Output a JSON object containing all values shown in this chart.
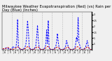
{
  "title": "Milwaukee Weather Evapotranspiration (Red) (vs) Rain per Day (Blue) (Inches)",
  "ylim": [
    0,
    3.2
  ],
  "ytick_vals": [
    0.5,
    1.0,
    1.5,
    2.0,
    2.5,
    3.0
  ],
  "ytick_labels": [
    ".5",
    "1.",
    "1.5",
    "2.",
    "2.5",
    "3."
  ],
  "background_color": "#f0f0f0",
  "rain_color": "#0000ff",
  "et_color": "#cc0000",
  "black_color": "#000000",
  "rain": [
    0.05,
    0.1,
    0.12,
    0.15,
    0.18,
    0.2,
    0.15,
    0.1,
    0.08,
    0.06,
    0.04,
    0.03,
    0.3,
    0.25,
    0.2,
    0.18,
    0.22,
    0.8,
    2.6,
    0.3,
    0.15,
    0.1,
    0.06,
    0.04,
    0.04,
    0.08,
    0.15,
    0.25,
    0.5,
    1.2,
    2.5,
    1.6,
    0.3,
    0.12,
    0.06,
    0.03,
    0.04,
    0.08,
    0.12,
    0.2,
    0.4,
    1.1,
    2.1,
    0.8,
    0.25,
    0.1,
    0.05,
    0.03,
    0.03,
    0.07,
    0.12,
    0.22,
    0.45,
    1.7,
    0.55,
    2.5,
    0.2,
    0.1,
    0.05,
    0.03,
    0.03,
    0.06,
    0.1,
    0.18,
    0.3,
    0.65,
    1.4,
    0.7,
    0.2,
    0.1,
    0.05,
    0.03,
    0.03,
    0.07,
    0.1,
    0.2,
    0.35,
    0.8,
    0.55,
    0.3,
    0.15,
    0.08,
    0.04,
    0.03,
    0.03,
    0.06,
    0.1,
    0.18,
    0.5,
    1.1,
    0.75,
    2.75,
    0.55,
    0.4,
    0.15,
    0.04,
    0.03,
    0.07,
    0.1,
    0.15,
    0.25,
    0.55,
    0.8,
    0.4,
    0.18,
    0.08,
    0.04,
    0.03
  ],
  "et": [
    0.1,
    0.12,
    0.08,
    0.1,
    0.14,
    0.18,
    0.22,
    0.2,
    0.15,
    0.1,
    0.06,
    0.04,
    0.05,
    0.08,
    0.1,
    0.13,
    0.17,
    0.22,
    0.26,
    0.24,
    0.18,
    0.1,
    0.06,
    0.03,
    0.03,
    0.05,
    0.08,
    0.12,
    0.17,
    0.24,
    0.28,
    0.26,
    0.19,
    0.11,
    0.05,
    0.03,
    0.03,
    0.05,
    0.08,
    0.12,
    0.17,
    0.24,
    0.27,
    0.25,
    0.18,
    0.1,
    0.05,
    0.03,
    0.03,
    0.05,
    0.08,
    0.13,
    0.18,
    0.25,
    0.3,
    0.28,
    0.2,
    0.11,
    0.05,
    0.03,
    0.03,
    0.05,
    0.07,
    0.11,
    0.16,
    0.22,
    0.25,
    0.23,
    0.17,
    0.09,
    0.04,
    0.02,
    0.02,
    0.04,
    0.07,
    0.1,
    0.15,
    0.21,
    0.25,
    0.24,
    0.17,
    0.09,
    0.04,
    0.02,
    0.02,
    0.04,
    0.07,
    0.11,
    0.17,
    0.23,
    0.28,
    0.26,
    0.19,
    0.11,
    0.05,
    0.02,
    0.02,
    0.04,
    0.07,
    0.1,
    0.15,
    0.21,
    0.26,
    0.24,
    0.17,
    0.1,
    0.05,
    0.02
  ],
  "vline_positions": [
    11.5,
    23.5,
    35.5,
    47.5,
    59.5,
    71.5,
    83.5,
    95.5
  ],
  "num_points": 108,
  "title_fontsize": 3.8,
  "figsize": [
    1.6,
    0.87
  ],
  "dpi": 100
}
